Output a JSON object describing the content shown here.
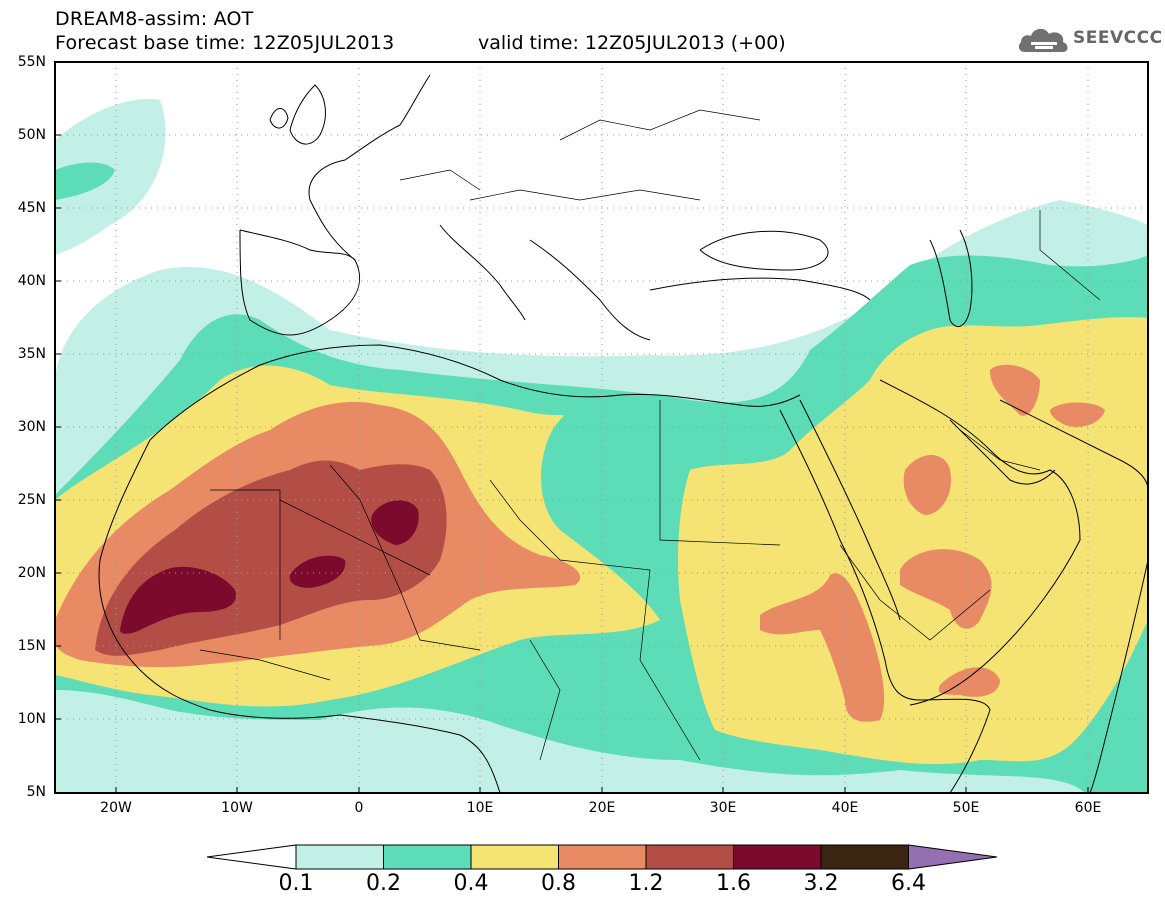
{
  "header": {
    "title": "DREAM8-assim: AOT",
    "base_time": "Forecast base time: 12Z05JUL2013",
    "valid_time": "valid time: 12Z05JUL2013 (+00)"
  },
  "logo": {
    "text": "SEEVCCC",
    "icon": "cloud-icon"
  },
  "map": {
    "lat_labels": [
      "55N",
      "50N",
      "45N",
      "40N",
      "35N",
      "30N",
      "25N",
      "20N",
      "15N",
      "10N",
      "5N"
    ],
    "lon_labels": [
      "20W",
      "10W",
      "0",
      "10E",
      "20E",
      "30E",
      "40E",
      "50E",
      "60E"
    ],
    "gridlines": true,
    "field": "AOT"
  },
  "colorbar": {
    "levels": [
      "0.1",
      "0.2",
      "0.4",
      "0.8",
      "1.2",
      "1.6",
      "3.2",
      "6.4"
    ],
    "colors": {
      "below": "#ffffff",
      "c1": "#c2f0e6",
      "c2": "#5ddcb8",
      "c3": "#f5e373",
      "c4": "#e88a64",
      "c5": "#b24e46",
      "c6": "#7c0a2c",
      "c7": "#3a2412",
      "above": "#9470b0"
    }
  }
}
